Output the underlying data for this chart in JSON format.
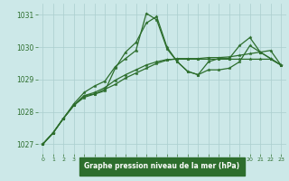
{
  "title": "Graphe pression niveau de la mer (hPa)",
  "background_color": "#cce8e8",
  "grid_color": "#aacece",
  "line_color": "#2d6e2d",
  "xlabel_bg": "#2d6e2d",
  "xlabel_fg": "#ffffff",
  "tick_color": "#2d6e2d",
  "xlim": [
    -0.5,
    23.5
  ],
  "ylim": [
    1026.7,
    1031.35
  ],
  "yticks": [
    1027,
    1028,
    1029,
    1030,
    1031
  ],
  "xticks": [
    0,
    1,
    2,
    3,
    4,
    5,
    6,
    7,
    8,
    9,
    10,
    11,
    12,
    13,
    14,
    15,
    16,
    17,
    18,
    19,
    20,
    21,
    22,
    23
  ],
  "series": [
    [
      1027.0,
      1027.35,
      1027.8,
      1028.2,
      1028.45,
      1028.55,
      1028.65,
      1029.35,
      1029.85,
      1030.15,
      1030.75,
      1030.95,
      1030.0,
      1029.55,
      1029.25,
      1029.15,
      1029.3,
      1029.3,
      1029.35,
      1029.55,
      1030.05,
      1029.85,
      1029.65,
      1029.45
    ],
    [
      1027.0,
      1027.35,
      1027.8,
      1028.2,
      1028.5,
      1028.55,
      1028.7,
      1028.85,
      1029.05,
      1029.2,
      1029.35,
      1029.5,
      1029.6,
      1029.65,
      1029.65,
      1029.65,
      1029.68,
      1029.68,
      1029.7,
      1029.75,
      1029.8,
      1029.85,
      1029.9,
      1029.45
    ],
    [
      1027.0,
      1027.35,
      1027.8,
      1028.2,
      1028.5,
      1028.6,
      1028.75,
      1028.98,
      1029.15,
      1029.3,
      1029.45,
      1029.55,
      1029.62,
      1029.63,
      1029.63,
      1029.63,
      1029.63,
      1029.63,
      1029.63,
      1029.63,
      1029.63,
      1029.63,
      1029.63,
      1029.45
    ],
    [
      1027.0,
      1027.35,
      1027.8,
      1028.25,
      1028.6,
      1028.8,
      1028.95,
      1029.4,
      1029.65,
      1029.9,
      1031.05,
      1030.85,
      1029.95,
      1029.55,
      1029.25,
      1029.15,
      1029.55,
      1029.65,
      1029.65,
      1030.05,
      1030.3,
      1029.85,
      1029.65,
      1029.45
    ]
  ],
  "linewidth": 0.9,
  "markersize": 2.5
}
